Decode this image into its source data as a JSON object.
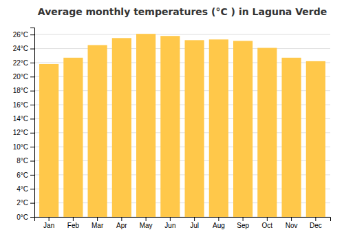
{
  "chart_data": {
    "type": "bar",
    "title": "Average monthly temperatures (°C ) in Laguna Verde",
    "categories": [
      "Jan",
      "Feb",
      "Mar",
      "Apr",
      "May",
      "Jun",
      "Jul",
      "Aug",
      "Sep",
      "Oct",
      "Nov",
      "Dec"
    ],
    "values": [
      21.8,
      22.7,
      24.5,
      25.5,
      26.1,
      25.8,
      25.2,
      25.3,
      25.1,
      24.1,
      22.7,
      22.2
    ],
    "color": "#FFC84A",
    "ylim": [
      0,
      27
    ],
    "yticks": [
      {
        "value": 0,
        "label": "0°C"
      },
      {
        "value": 2,
        "label": "2°C"
      },
      {
        "value": 4,
        "label": "4°C"
      },
      {
        "value": 6,
        "label": "6°C"
      },
      {
        "value": 8,
        "label": "8°C"
      },
      {
        "value": 10,
        "label": "10°C"
      },
      {
        "value": 12,
        "label": "12°C"
      },
      {
        "value": 14,
        "label": "14°C"
      },
      {
        "value": 16,
        "label": "16°C"
      },
      {
        "value": 18,
        "label": "18°C"
      },
      {
        "value": 20,
        "label": "20°C"
      },
      {
        "value": 22,
        "label": "22°C"
      },
      {
        "value": 24,
        "label": "24°C"
      },
      {
        "value": 26,
        "label": "26°C"
      }
    ],
    "grid": true
  }
}
